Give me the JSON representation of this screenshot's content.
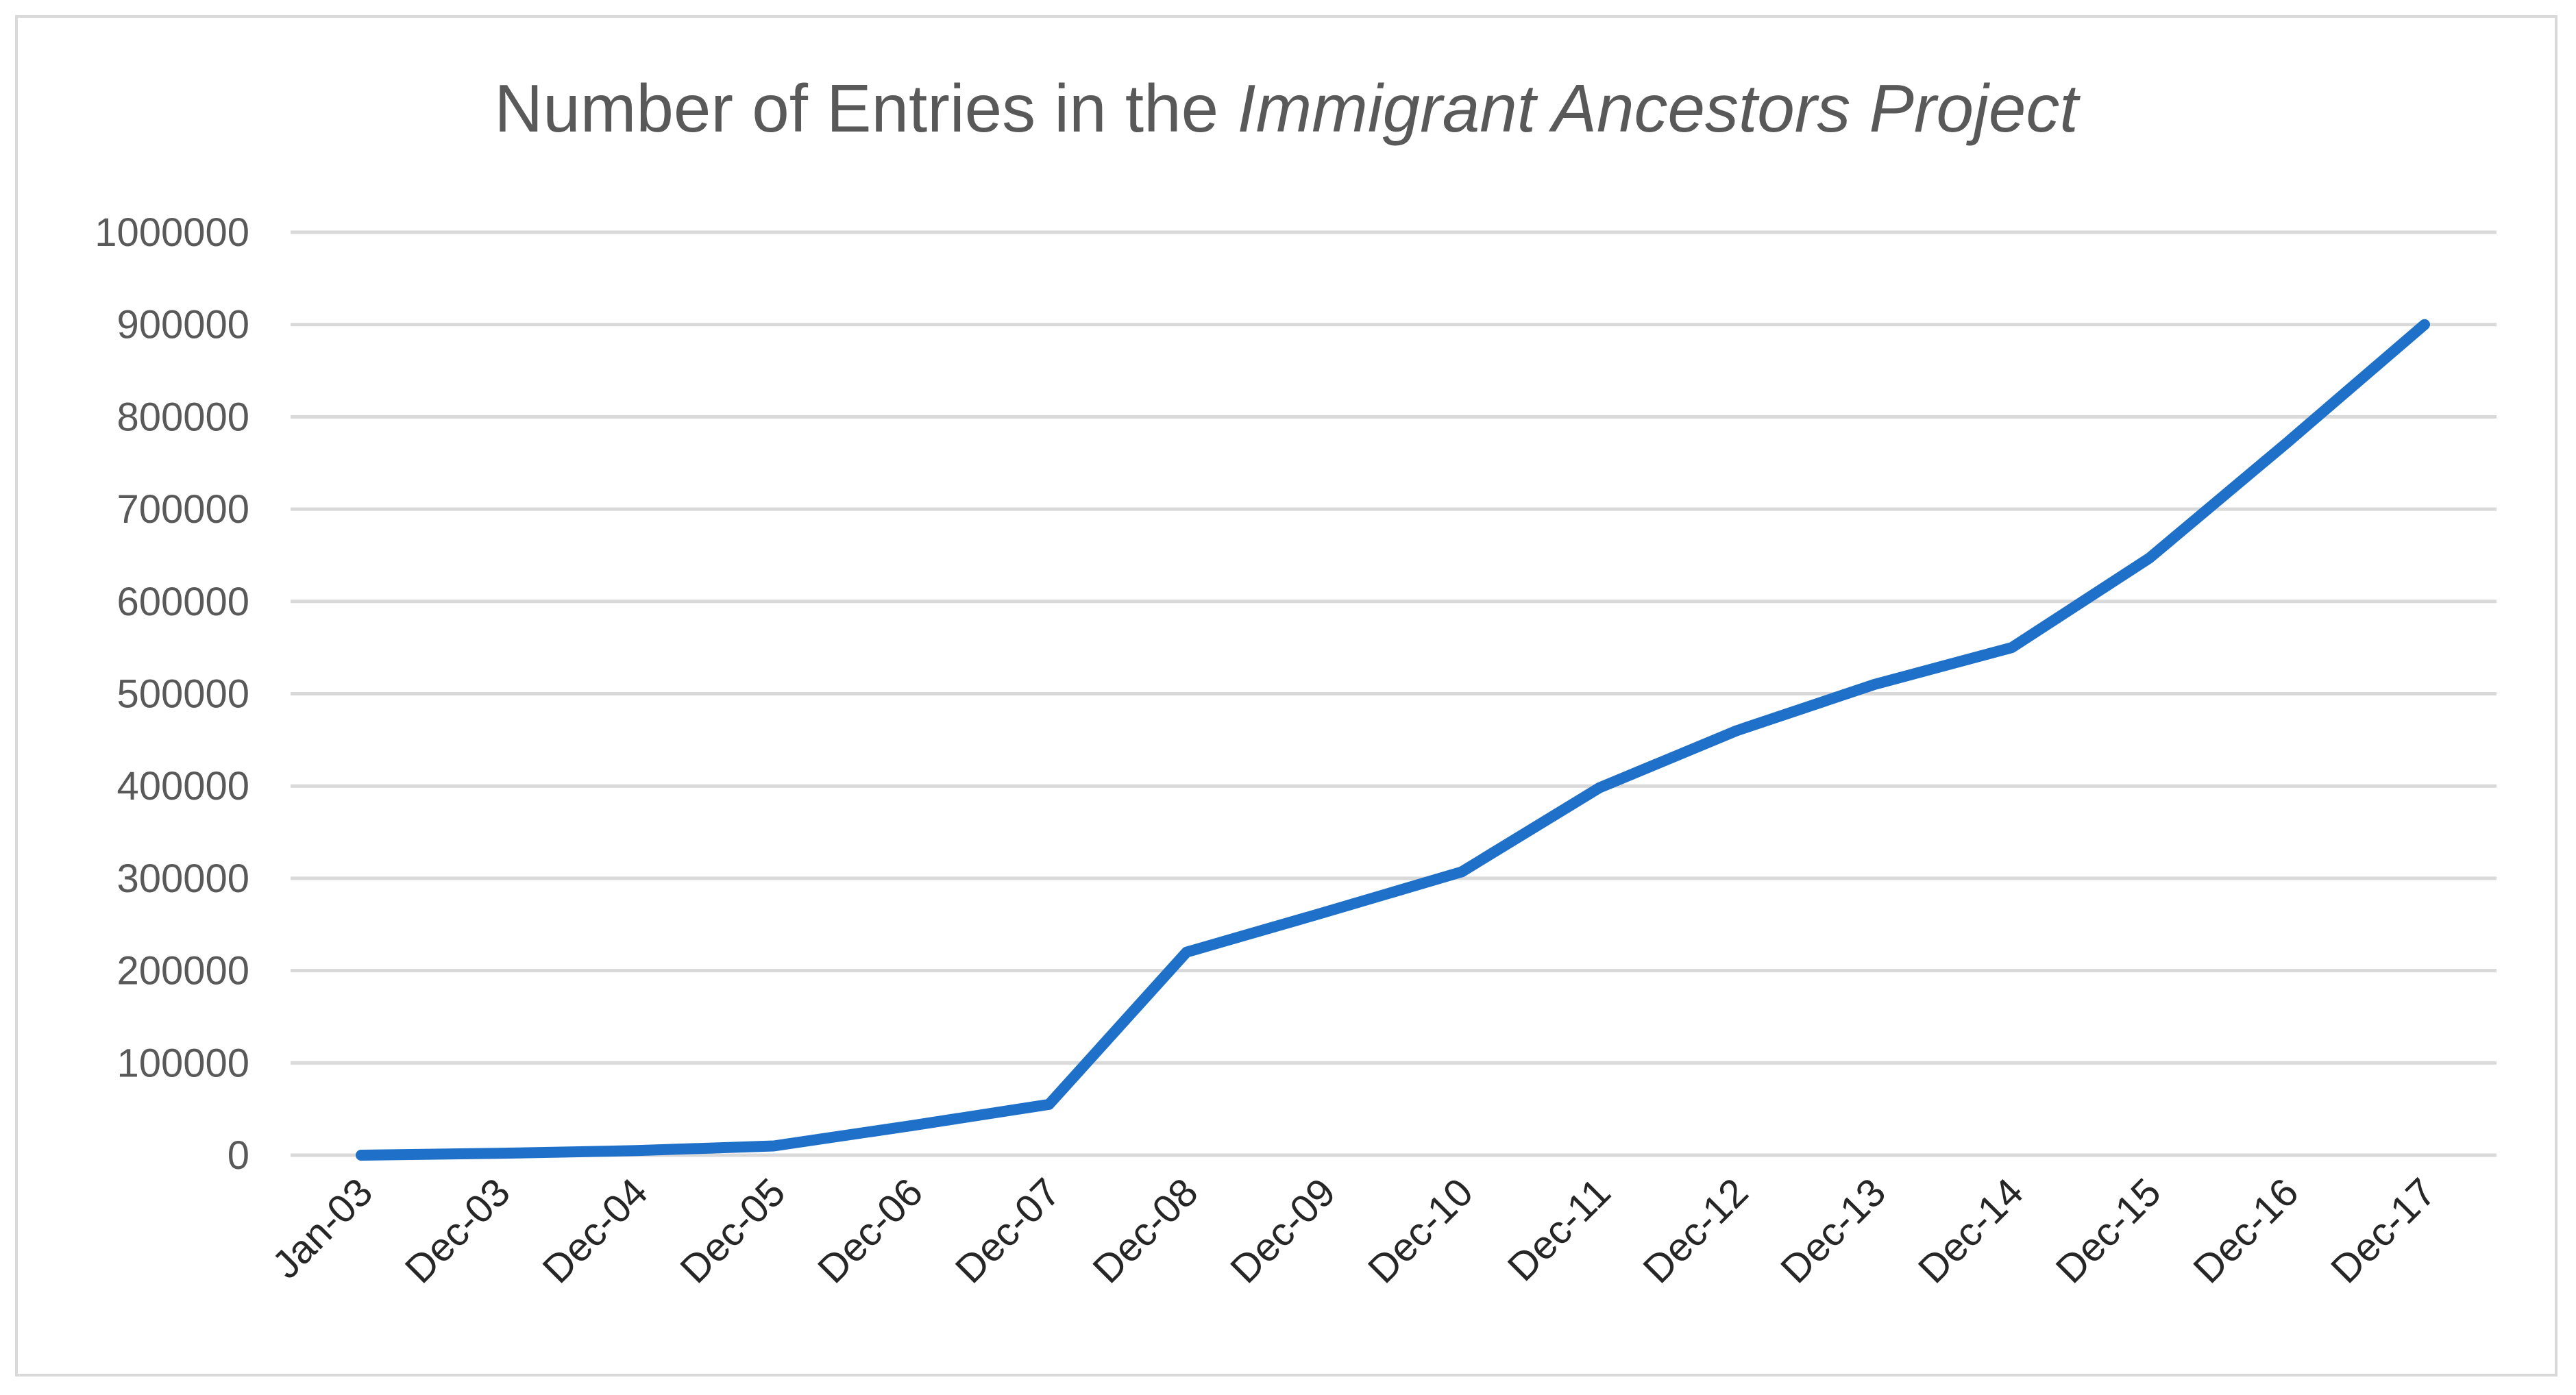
{
  "chart_data": {
    "type": "line",
    "title_parts": {
      "prefix": "Number of Entries in the ",
      "italic": "Immigrant Ancestors Project"
    },
    "xlabel": "",
    "ylabel": "",
    "categories": [
      "Jan-03",
      "Dec-03",
      "Dec-04",
      "Dec-05",
      "Dec-06",
      "Dec-07",
      "Dec-08",
      "Dec-09",
      "Dec-10",
      "Dec-11",
      "Dec-12",
      "Dec-13",
      "Dec-14",
      "Dec-15",
      "Dec-16",
      "Dec-17"
    ],
    "series": [
      {
        "values": [
          0,
          2000,
          5000,
          10000,
          32000,
          55000,
          220000,
          263000,
          307000,
          398000,
          460000,
          510000,
          550000,
          647000,
          772000,
          900000
        ],
        "color": "#1f70c8"
      }
    ],
    "ylim": [
      0,
      1000000
    ],
    "yticks": [
      "0",
      "100000",
      "200000",
      "300000",
      "400000",
      "500000",
      "600000",
      "700000",
      "800000",
      "900000",
      "1000000"
    ],
    "grid": true,
    "legend": "none",
    "colors": {
      "gridline": "#d9d9d9",
      "frame": "#d9d9d9",
      "title": "#595959",
      "tick_label": "#595959"
    }
  }
}
